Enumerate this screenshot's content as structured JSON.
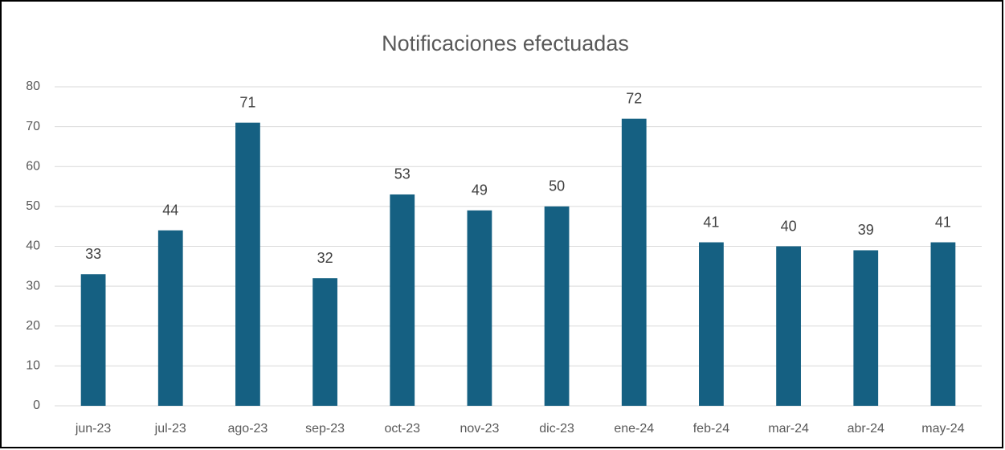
{
  "chart_data": {
    "type": "bar",
    "title": "Notificaciones efectuadas",
    "categories": [
      "jun-23",
      "jul-23",
      "ago-23",
      "sep-23",
      "oct-23",
      "nov-23",
      "dic-23",
      "ene-24",
      "feb-24",
      "mar-24",
      "abr-24",
      "may-24"
    ],
    "values": [
      33,
      44,
      71,
      32,
      53,
      49,
      50,
      72,
      41,
      40,
      39,
      41
    ],
    "color": "#156082",
    "ylim": [
      0,
      80
    ],
    "yticks": [
      0,
      10,
      20,
      30,
      40,
      50,
      60,
      70,
      80
    ],
    "grid": true
  }
}
